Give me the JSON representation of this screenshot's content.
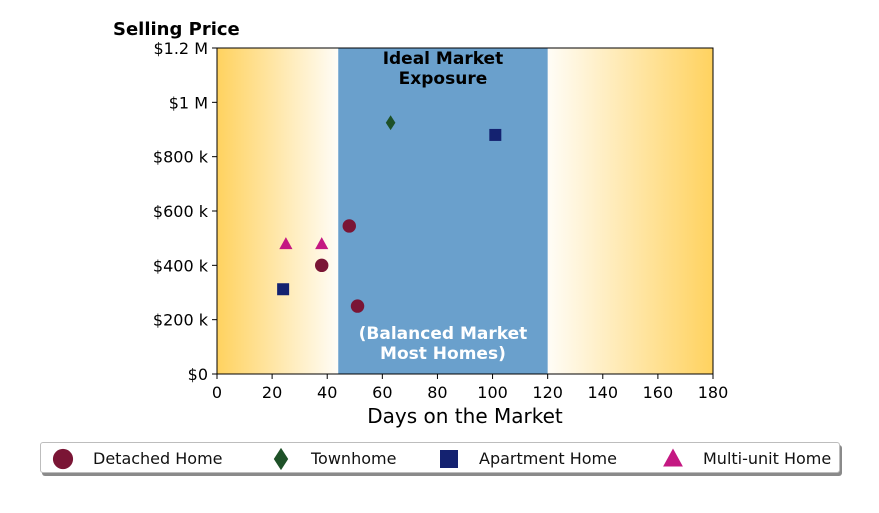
{
  "chart_data": {
    "type": "scatter",
    "title": "Selling Price",
    "xlabel": "Days on the Market",
    "ylabel": "",
    "xlim": [
      0,
      180
    ],
    "ylim": [
      0,
      1200000
    ],
    "xticks": [
      0,
      20,
      40,
      60,
      80,
      100,
      120,
      140,
      160,
      180
    ],
    "yticks": [
      {
        "value": 0,
        "label": "$0"
      },
      {
        "value": 200000,
        "label": "$200 k"
      },
      {
        "value": 400000,
        "label": "$400 k"
      },
      {
        "value": 600000,
        "label": "$600 k"
      },
      {
        "value": 800000,
        "label": "$800 k"
      },
      {
        "value": 1000000,
        "label": "$1 M"
      },
      {
        "value": 1200000,
        "label": "$1.2 M"
      }
    ],
    "grid": false,
    "legend_position": "bottom",
    "band": {
      "x_range": [
        44,
        120
      ],
      "color": "#6aa0cc",
      "label_top": [
        "Ideal Market",
        "Exposure"
      ],
      "label_bottom": [
        "(Balanced Market",
        "Most Homes)"
      ]
    },
    "gradient_color": "#ffd25f",
    "series": [
      {
        "name": "Detached Home",
        "marker": "circle",
        "color": "#7a1535",
        "points": [
          {
            "x": 38,
            "y": 400000
          },
          {
            "x": 48,
            "y": 545000
          },
          {
            "x": 51,
            "y": 250000
          }
        ]
      },
      {
        "name": "Townhome",
        "marker": "diamond",
        "color": "#1e5128",
        "points": [
          {
            "x": 63,
            "y": 925000
          }
        ]
      },
      {
        "name": "Apartment Home",
        "marker": "square",
        "color": "#142270",
        "points": [
          {
            "x": 24,
            "y": 312000
          },
          {
            "x": 101,
            "y": 880000
          }
        ]
      },
      {
        "name": "Multi-unit Home",
        "marker": "triangle",
        "color": "#c41882",
        "points": [
          {
            "x": 25,
            "y": 478000
          },
          {
            "x": 38,
            "y": 478000
          }
        ]
      }
    ]
  }
}
